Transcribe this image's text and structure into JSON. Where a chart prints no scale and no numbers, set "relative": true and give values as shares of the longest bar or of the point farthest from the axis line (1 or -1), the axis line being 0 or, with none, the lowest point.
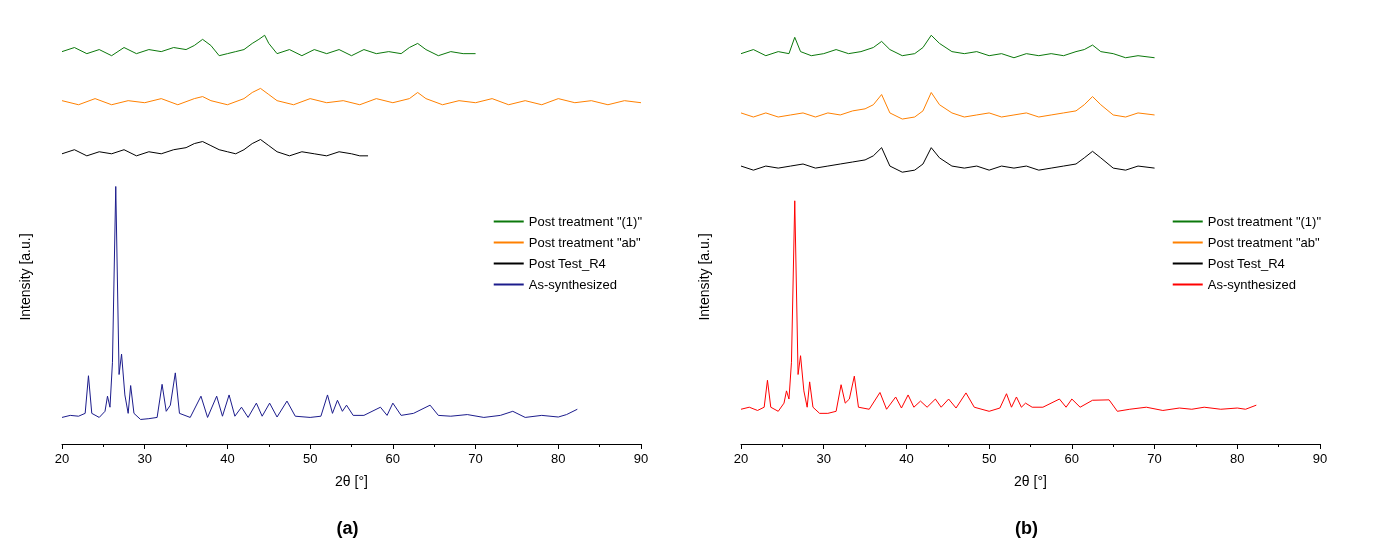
{
  "chart_data": [
    {
      "type": "line",
      "title": "(a)",
      "xlabel": "2θ [°]",
      "ylabel": "Intensity [a.u.]",
      "relative": true,
      "xlim": [
        20,
        90
      ],
      "xticks": [
        20,
        30,
        40,
        50,
        60,
        70,
        80,
        90
      ],
      "grid": false,
      "legend": "right",
      "marker": "none",
      "line_style": "solid",
      "series": [
        {
          "name": "Post treatment \"(1)\"",
          "color": "#0b780b",
          "x": [
            20,
            21.5,
            23,
            24.5,
            26,
            27.5,
            29,
            30.5,
            32,
            33.5,
            35,
            36,
            37,
            38,
            39,
            40,
            41,
            42,
            43,
            43.8,
            44.5,
            45,
            46,
            47.5,
            49,
            50.5,
            52,
            53.5,
            55,
            56.5,
            58,
            59.5,
            61,
            62,
            63,
            64,
            65.5,
            67,
            68.5,
            70
          ],
          "values": [
            0.96,
            0.97,
            0.955,
            0.965,
            0.95,
            0.97,
            0.955,
            0.965,
            0.96,
            0.97,
            0.965,
            0.975,
            0.99,
            0.975,
            0.95,
            0.955,
            0.96,
            0.965,
            0.98,
            0.99,
            1.0,
            0.98,
            0.955,
            0.965,
            0.95,
            0.965,
            0.955,
            0.965,
            0.95,
            0.965,
            0.955,
            0.96,
            0.955,
            0.97,
            0.98,
            0.965,
            0.95,
            0.96,
            0.955,
            0.955
          ]
        },
        {
          "name": "Post treatment \"ab\"",
          "color": "#ff8000",
          "x": [
            20,
            22,
            24,
            26,
            28,
            30,
            32,
            34,
            36,
            37,
            38,
            40,
            42,
            43,
            44,
            45,
            46,
            48,
            50,
            52,
            54,
            56,
            58,
            60,
            62,
            63,
            64,
            66,
            68,
            70,
            72,
            74,
            76,
            78,
            80,
            82,
            84,
            86,
            88,
            90
          ],
          "values": [
            0.84,
            0.83,
            0.845,
            0.83,
            0.84,
            0.835,
            0.845,
            0.83,
            0.845,
            0.85,
            0.84,
            0.83,
            0.845,
            0.86,
            0.87,
            0.855,
            0.84,
            0.83,
            0.845,
            0.835,
            0.84,
            0.83,
            0.845,
            0.835,
            0.845,
            0.86,
            0.845,
            0.83,
            0.84,
            0.835,
            0.845,
            0.83,
            0.84,
            0.83,
            0.845,
            0.835,
            0.84,
            0.83,
            0.84,
            0.835
          ]
        },
        {
          "name": "Post Test_R4",
          "color": "#000000",
          "x": [
            20,
            21.5,
            23,
            24.5,
            26,
            27.5,
            29,
            30.5,
            32,
            33.5,
            35,
            36,
            37,
            38,
            39,
            40,
            41,
            42,
            43,
            44,
            45,
            46,
            47.5,
            49,
            50.5,
            52,
            53.5,
            55,
            56,
            57
          ],
          "values": [
            0.71,
            0.72,
            0.705,
            0.715,
            0.71,
            0.72,
            0.705,
            0.715,
            0.71,
            0.72,
            0.725,
            0.735,
            0.74,
            0.73,
            0.72,
            0.715,
            0.71,
            0.72,
            0.735,
            0.745,
            0.73,
            0.715,
            0.705,
            0.715,
            0.71,
            0.705,
            0.715,
            0.71,
            0.705,
            0.705
          ]
        },
        {
          "name": "As-synthesized",
          "color": "#1c1c8c",
          "x": [
            20,
            21,
            22,
            22.8,
            23.2,
            23.6,
            24.5,
            25.2,
            25.5,
            25.8,
            26.1,
            26.5,
            26.9,
            27.2,
            27.6,
            28,
            28.3,
            28.7,
            29.5,
            30.5,
            31.5,
            32.1,
            32.6,
            33.1,
            33.7,
            34.2,
            35.5,
            36.8,
            37.6,
            38.7,
            39.4,
            40.2,
            40.9,
            41.7,
            42.5,
            43.5,
            44.2,
            45.1,
            46,
            47.2,
            48.2,
            50,
            51.3,
            52.1,
            52.7,
            53.3,
            53.9,
            54.4,
            55.2,
            56.5,
            58.5,
            59.3,
            60,
            61,
            62.5,
            64.5,
            65.5,
            67,
            69,
            71,
            73,
            74.5,
            76,
            78,
            80,
            81,
            82.3
          ],
          "values": [
            0.065,
            0.07,
            0.068,
            0.075,
            0.167,
            0.075,
            0.065,
            0.08,
            0.117,
            0.09,
            0.2,
            0.63,
            0.17,
            0.22,
            0.12,
            0.075,
            0.143,
            0.075,
            0.06,
            0.062,
            0.065,
            0.146,
            0.08,
            0.095,
            0.174,
            0.075,
            0.065,
            0.117,
            0.065,
            0.117,
            0.068,
            0.12,
            0.068,
            0.09,
            0.065,
            0.1,
            0.068,
            0.1,
            0.066,
            0.105,
            0.068,
            0.065,
            0.068,
            0.12,
            0.075,
            0.107,
            0.08,
            0.095,
            0.07,
            0.07,
            0.09,
            0.07,
            0.1,
            0.07,
            0.075,
            0.095,
            0.07,
            0.068,
            0.072,
            0.065,
            0.07,
            0.08,
            0.065,
            0.07,
            0.066,
            0.072,
            0.085
          ]
        }
      ]
    },
    {
      "type": "line",
      "title": "(b)",
      "xlabel": "2θ [°]",
      "ylabel": "Intensity [a.u.]",
      "relative": true,
      "xlim": [
        20,
        90
      ],
      "xticks": [
        20,
        30,
        40,
        50,
        60,
        70,
        80,
        90
      ],
      "grid": false,
      "legend": "right",
      "marker": "none",
      "line_style": "solid",
      "series": [
        {
          "name": "Post treatment \"(1)\"",
          "color": "#0b780b",
          "x": [
            20,
            21.5,
            23,
            24.5,
            25.8,
            26.5,
            27.2,
            28.5,
            30,
            31.5,
            33,
            34.5,
            36,
            37,
            38,
            39.5,
            41,
            42,
            43,
            44,
            45.5,
            47,
            48.5,
            50,
            51.5,
            53,
            54.5,
            56,
            57.5,
            59,
            60.5,
            61.5,
            62.5,
            63.5,
            65,
            66.5,
            68,
            70
          ],
          "values": [
            0.955,
            0.965,
            0.95,
            0.96,
            0.955,
            0.995,
            0.96,
            0.95,
            0.955,
            0.965,
            0.955,
            0.96,
            0.97,
            0.985,
            0.965,
            0.95,
            0.955,
            0.97,
            1.0,
            0.98,
            0.96,
            0.955,
            0.96,
            0.95,
            0.955,
            0.945,
            0.955,
            0.95,
            0.955,
            0.95,
            0.96,
            0.965,
            0.976,
            0.96,
            0.955,
            0.945,
            0.95,
            0.945
          ]
        },
        {
          "name": "Post treatment \"ab\"",
          "color": "#ff8000",
          "x": [
            20,
            21.5,
            23,
            24.5,
            26,
            27.5,
            29,
            30.5,
            32,
            33.5,
            35,
            36,
            37,
            38,
            39.5,
            41,
            42,
            43,
            44,
            45.5,
            47,
            48.5,
            50,
            51.5,
            53,
            54.5,
            56,
            57.5,
            59,
            60.5,
            61.5,
            62.5,
            63.5,
            65,
            66.5,
            68,
            70
          ],
          "values": [
            0.81,
            0.8,
            0.81,
            0.8,
            0.805,
            0.81,
            0.8,
            0.81,
            0.805,
            0.815,
            0.82,
            0.83,
            0.855,
            0.81,
            0.795,
            0.8,
            0.815,
            0.86,
            0.83,
            0.81,
            0.8,
            0.805,
            0.81,
            0.8,
            0.805,
            0.81,
            0.8,
            0.805,
            0.81,
            0.815,
            0.83,
            0.85,
            0.83,
            0.805,
            0.8,
            0.81,
            0.805
          ]
        },
        {
          "name": "Post Test_R4",
          "color": "#000000",
          "x": [
            20,
            21.5,
            23,
            24.5,
            26,
            27.5,
            29,
            30.5,
            32,
            33.5,
            35,
            36,
            37,
            38,
            39.5,
            41,
            42,
            43,
            44,
            45.5,
            47,
            48.5,
            50,
            51.5,
            53,
            54.5,
            56,
            57.5,
            59,
            60.5,
            61.5,
            62.5,
            63.5,
            65,
            66.5,
            68,
            70
          ],
          "values": [
            0.68,
            0.67,
            0.68,
            0.675,
            0.68,
            0.685,
            0.675,
            0.68,
            0.685,
            0.69,
            0.695,
            0.705,
            0.725,
            0.68,
            0.665,
            0.67,
            0.685,
            0.725,
            0.7,
            0.68,
            0.675,
            0.68,
            0.67,
            0.68,
            0.675,
            0.68,
            0.67,
            0.675,
            0.68,
            0.685,
            0.7,
            0.716,
            0.7,
            0.675,
            0.67,
            0.68,
            0.675
          ]
        },
        {
          "name": "As-synthesized",
          "color": "#ff0000",
          "x": [
            20,
            21,
            22,
            22.8,
            23.2,
            23.6,
            24.5,
            25.2,
            25.5,
            25.8,
            26.1,
            26.5,
            26.9,
            27.2,
            27.6,
            28,
            28.3,
            28.7,
            29.5,
            30.5,
            31.5,
            32.1,
            32.6,
            33.1,
            33.7,
            34.2,
            35.5,
            36.8,
            37.6,
            38.7,
            39.4,
            40.2,
            40.9,
            41.7,
            42.5,
            43.5,
            44.2,
            45.1,
            46,
            47.2,
            48.2,
            50,
            51.3,
            52.1,
            52.7,
            53.3,
            53.9,
            54.4,
            55.2,
            56.5,
            58.5,
            59.3,
            60,
            61,
            62.5,
            64.5,
            65.5,
            67,
            69,
            71,
            73,
            74.5,
            76,
            78,
            80,
            81,
            82.3
          ],
          "values": [
            0.085,
            0.09,
            0.082,
            0.09,
            0.156,
            0.09,
            0.08,
            0.1,
            0.13,
            0.11,
            0.2,
            0.595,
            0.17,
            0.216,
            0.13,
            0.09,
            0.152,
            0.09,
            0.075,
            0.075,
            0.08,
            0.145,
            0.1,
            0.11,
            0.166,
            0.09,
            0.085,
            0.126,
            0.085,
            0.115,
            0.088,
            0.12,
            0.09,
            0.105,
            0.09,
            0.11,
            0.09,
            0.11,
            0.088,
            0.125,
            0.09,
            0.08,
            0.088,
            0.123,
            0.09,
            0.115,
            0.09,
            0.1,
            0.09,
            0.09,
            0.11,
            0.09,
            0.11,
            0.09,
            0.107,
            0.108,
            0.08,
            0.085,
            0.09,
            0.082,
            0.088,
            0.085,
            0.09,
            0.085,
            0.088,
            0.085,
            0.095
          ]
        }
      ]
    }
  ]
}
